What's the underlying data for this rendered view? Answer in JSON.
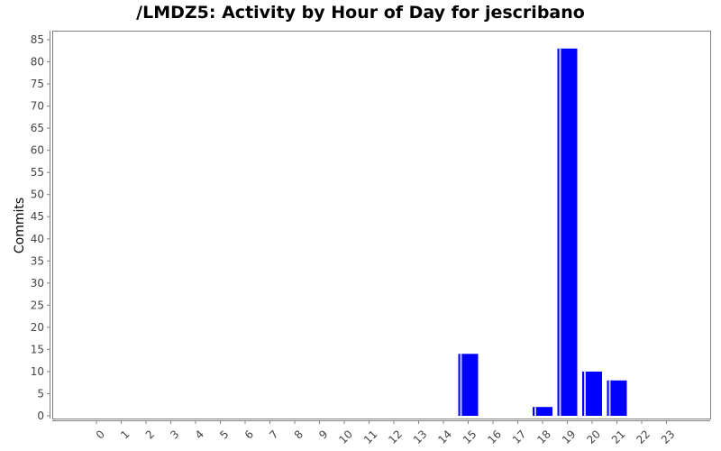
{
  "chart_data": {
    "type": "bar",
    "title": "/LMDZ5: Activity by Hour of Day for jescribano",
    "xlabel": "",
    "ylabel": "Commits",
    "categories": [
      "0",
      "1",
      "2",
      "3",
      "4",
      "5",
      "6",
      "7",
      "8",
      "9",
      "10",
      "11",
      "12",
      "13",
      "14",
      "15",
      "16",
      "17",
      "18",
      "19",
      "20",
      "21",
      "22",
      "23"
    ],
    "values": [
      0,
      0,
      0,
      0,
      0,
      0,
      0,
      0,
      0,
      0,
      0,
      0,
      0,
      0,
      0,
      14,
      0,
      0,
      2,
      83,
      10,
      8,
      0,
      0
    ],
    "ylim": [
      0,
      86
    ],
    "yticks": [
      0,
      5,
      10,
      15,
      20,
      25,
      30,
      35,
      40,
      45,
      50,
      55,
      60,
      65,
      70,
      75,
      80,
      85
    ],
    "grid": false,
    "legend": "none",
    "colors": {
      "bar": "#0000ff",
      "bar_highlight": "#c8c8ff",
      "plot_border": "#808080",
      "axis": "#808080",
      "tick_text": "#444444"
    }
  }
}
